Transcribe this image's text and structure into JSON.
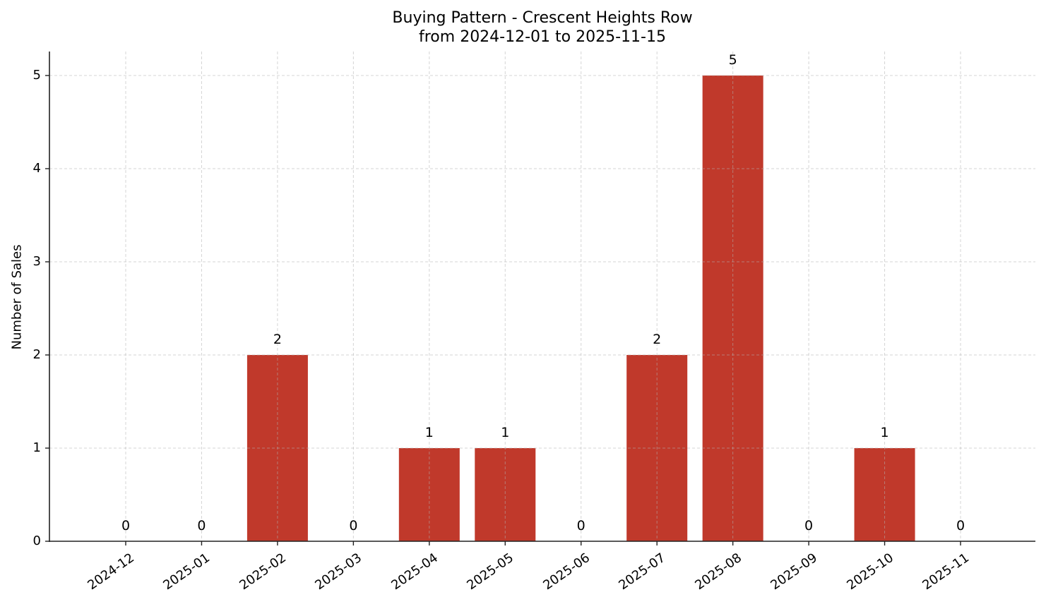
{
  "chart_data": {
    "type": "bar",
    "title": "Buying Pattern - Crescent Heights Row",
    "subtitle": "from 2024-12-01 to 2025-11-15",
    "xlabel": "",
    "ylabel": "Number of Sales",
    "categories": [
      "2024-12",
      "2025-01",
      "2025-02",
      "2025-03",
      "2025-04",
      "2025-05",
      "2025-06",
      "2025-07",
      "2025-08",
      "2025-09",
      "2025-10",
      "2025-11"
    ],
    "values": [
      0,
      0,
      2,
      0,
      1,
      1,
      0,
      2,
      5,
      0,
      1,
      0
    ],
    "ylim": [
      0,
      5.25
    ],
    "yticks": [
      0,
      1,
      2,
      3,
      4,
      5
    ],
    "grid": true,
    "legend": null,
    "bar_color": "#c0392b"
  }
}
